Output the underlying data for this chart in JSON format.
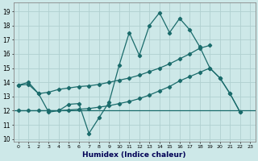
{
  "xlabel": "Humidex (Indice chaleur)",
  "bg_color": "#cde8e8",
  "grid_color": "#b0d0d0",
  "line_color": "#1a6b6b",
  "xlim": [
    -0.5,
    23.5
  ],
  "ylim": [
    9.8,
    19.6
  ],
  "yticks": [
    10,
    11,
    12,
    13,
    14,
    15,
    16,
    17,
    18,
    19
  ],
  "xticks": [
    0,
    1,
    2,
    3,
    4,
    5,
    6,
    7,
    8,
    9,
    10,
    11,
    12,
    13,
    14,
    15,
    16,
    17,
    18,
    19,
    20,
    21,
    22,
    23
  ],
  "line_zigzag_x": [
    0,
    1,
    2,
    3,
    4,
    5,
    6,
    7,
    8,
    9,
    10,
    11,
    12,
    13,
    14,
    15,
    16,
    17,
    18,
    19,
    20,
    21,
    22
  ],
  "line_zigzag_y": [
    13.8,
    14.0,
    13.2,
    11.9,
    12.0,
    12.45,
    12.5,
    10.4,
    11.5,
    12.6,
    15.2,
    17.5,
    15.9,
    18.0,
    18.9,
    17.5,
    18.5,
    17.7,
    16.5,
    15.0,
    14.3,
    13.2,
    11.9
  ],
  "line_upper_x": [
    0,
    1,
    2,
    3,
    4,
    5,
    6,
    7,
    8,
    9,
    10,
    11,
    12,
    13,
    14,
    15,
    16,
    17,
    18,
    19
  ],
  "line_upper_y": [
    13.8,
    13.85,
    13.2,
    13.3,
    13.5,
    13.6,
    13.7,
    13.75,
    13.85,
    14.0,
    14.15,
    14.3,
    14.5,
    14.75,
    15.0,
    15.3,
    15.65,
    16.0,
    16.4,
    16.6
  ],
  "line_lower_x": [
    0,
    1,
    2,
    3,
    4,
    5,
    6,
    7,
    8,
    9,
    10,
    11,
    12,
    13,
    14,
    15,
    16,
    17,
    18,
    19,
    20,
    21,
    22
  ],
  "line_lower_y": [
    12.0,
    12.0,
    12.0,
    12.0,
    12.0,
    12.05,
    12.1,
    12.15,
    12.25,
    12.35,
    12.5,
    12.65,
    12.85,
    13.1,
    13.4,
    13.7,
    14.1,
    14.4,
    14.7,
    15.0,
    14.3,
    13.2,
    11.9
  ],
  "hline_y": 12.0
}
